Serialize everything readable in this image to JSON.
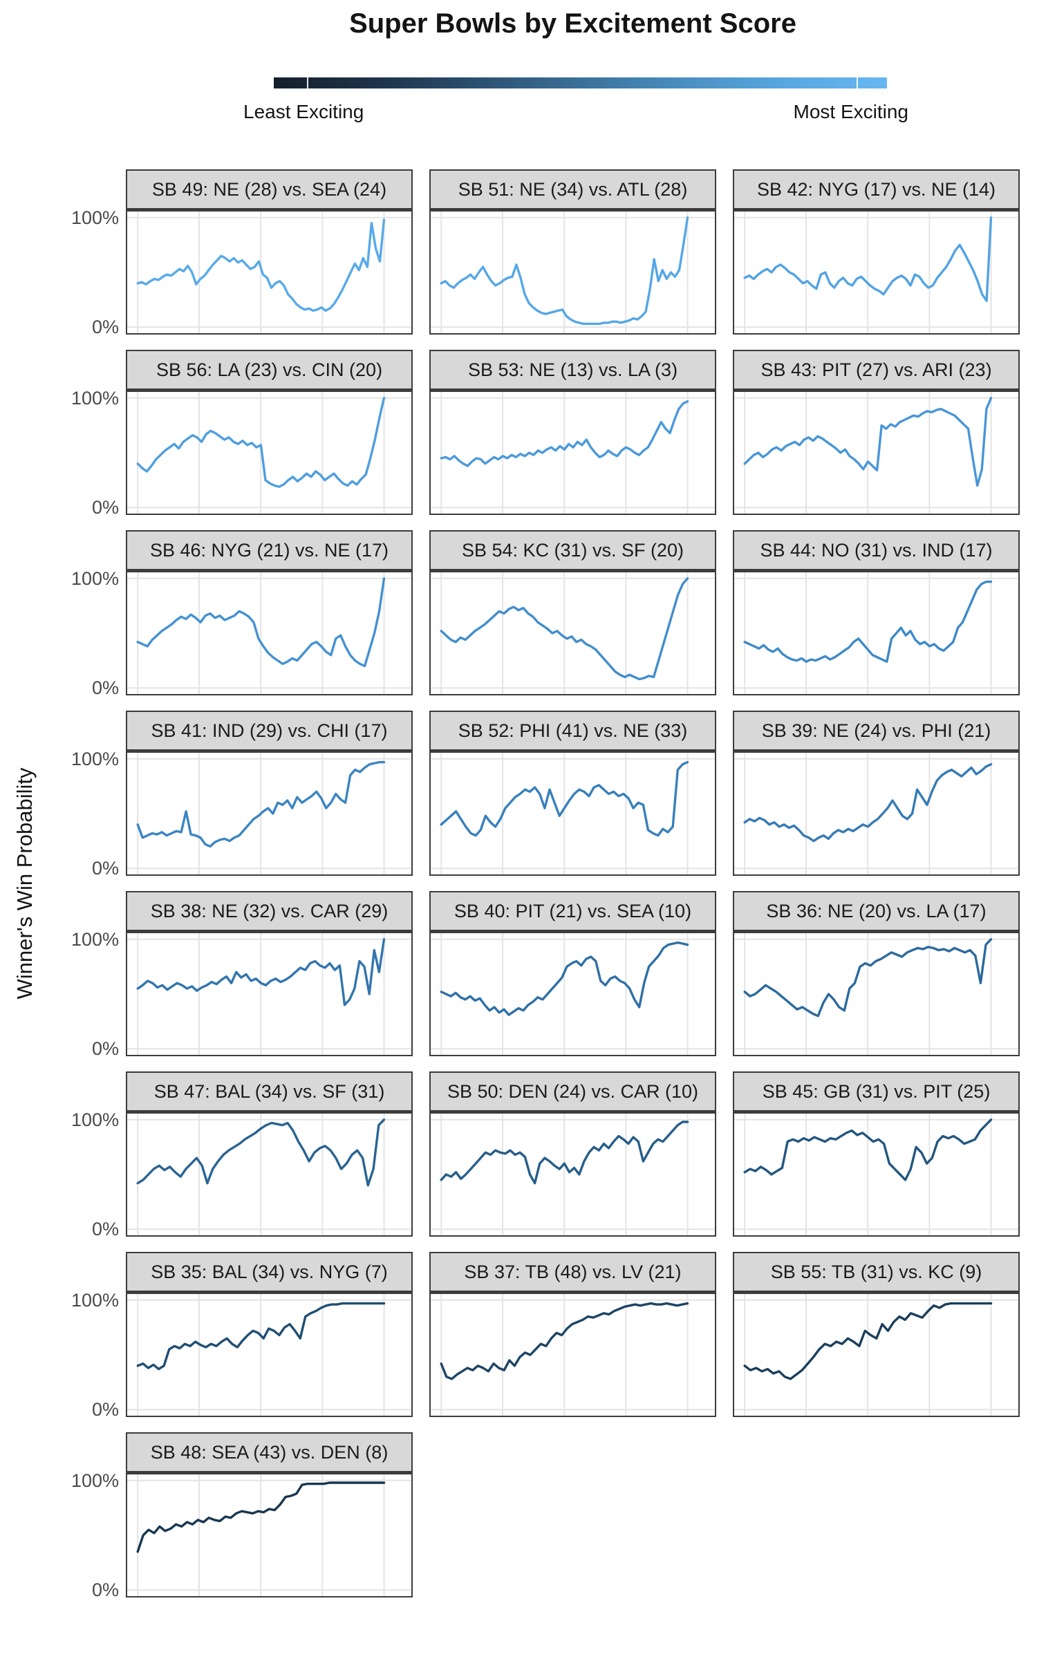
{
  "header": {
    "title": "Super Bowls by Excitement Score"
  },
  "legend": {
    "least_label": "Least Exciting",
    "most_label": "Most Exciting",
    "gradient": [
      "#141f2b",
      "#1d3349",
      "#2b5070",
      "#3a7099",
      "#4a8ec0",
      "#58a7e2",
      "#67b7f2"
    ],
    "tick_positions_pct": [
      5.4,
      95
    ]
  },
  "y_axis": {
    "title": "Winner's Win Probability",
    "tick_top": "100%",
    "tick_bottom": "0%"
  },
  "chart_data": {
    "type": "line",
    "layout": "small-multiples, 3 columns, ordered most exciting (top-left, light blue) to least exciting (bottom, dark navy)",
    "x": "game progress, evenly spaced from kickoff (left gridline) to final play (right gridline)",
    "xlabel": "",
    "ylabel": "Winner's Win Probability",
    "ylim": [
      0,
      100
    ],
    "y_ticks": [
      "0%",
      "100%"
    ],
    "grid": "5 vertical gridlines per panel plus horizontal lines at 0% and 100%",
    "legend_position": "top gradient bar: Least Exciting (dark) to Most Exciting (light)",
    "facets": [
      {
        "title": "SB 49: NE (28) vs. SEA (24)",
        "color": "#58aae9",
        "values": [
          40,
          41,
          39,
          42,
          44,
          43,
          46,
          48,
          47,
          50,
          53,
          51,
          56,
          50,
          39,
          44,
          47,
          52,
          57,
          61,
          65,
          63,
          60,
          63,
          59,
          61,
          57,
          53,
          55,
          60,
          48,
          45,
          36,
          40,
          42,
          38,
          30,
          26,
          21,
          18,
          16,
          17,
          15,
          16,
          18,
          15,
          17,
          21,
          27,
          34,
          42,
          50,
          58,
          52,
          63,
          55,
          95,
          72,
          60,
          98
        ]
      },
      {
        "title": "SB 51: NE (34) vs. ATL (28)",
        "color": "#55a7e7",
        "values": [
          40,
          42,
          38,
          36,
          40,
          43,
          45,
          48,
          44,
          50,
          55,
          48,
          42,
          38,
          40,
          43,
          45,
          46,
          57,
          45,
          30,
          22,
          18,
          15,
          13,
          12,
          13,
          14,
          15,
          16,
          10,
          7,
          5,
          4,
          3,
          3,
          3,
          3,
          3,
          4,
          4,
          5,
          5,
          4,
          5,
          6,
          8,
          7,
          10,
          14,
          35,
          62,
          42,
          52,
          44,
          50,
          46,
          52,
          75,
          100
        ]
      },
      {
        "title": "SB 42: NYG (17) vs. NE (14)",
        "color": "#52a3e3",
        "values": [
          45,
          47,
          44,
          48,
          51,
          53,
          50,
          55,
          57,
          54,
          50,
          48,
          44,
          40,
          42,
          38,
          35,
          48,
          50,
          40,
          36,
          42,
          45,
          40,
          38,
          44,
          46,
          42,
          38,
          35,
          33,
          30,
          36,
          42,
          45,
          47,
          44,
          38,
          48,
          46,
          40,
          36,
          38,
          45,
          50,
          55,
          62,
          70,
          75,
          68,
          60,
          52,
          42,
          30,
          24,
          100
        ]
      },
      {
        "title": "SB 56: LA (23) vs. CIN (20)",
        "color": "#4e9edf",
        "values": [
          40,
          36,
          33,
          38,
          44,
          48,
          52,
          55,
          58,
          54,
          60,
          63,
          66,
          64,
          60,
          67,
          70,
          68,
          65,
          62,
          64,
          60,
          58,
          61,
          57,
          59,
          55,
          57,
          25,
          22,
          20,
          19,
          21,
          25,
          28,
          24,
          27,
          31,
          28,
          33,
          30,
          25,
          28,
          31,
          26,
          22,
          20,
          24,
          21,
          26,
          30,
          45,
          62,
          82,
          100
        ]
      },
      {
        "title": "SB 53: NE (13) vs. LA (3)",
        "color": "#4b9adb",
        "values": [
          45,
          46,
          44,
          47,
          43,
          40,
          38,
          42,
          45,
          44,
          40,
          43,
          46,
          44,
          47,
          45,
          48,
          46,
          49,
          47,
          50,
          48,
          52,
          50,
          53,
          55,
          52,
          56,
          53,
          58,
          55,
          60,
          57,
          62,
          55,
          50,
          46,
          48,
          52,
          49,
          47,
          52,
          55,
          53,
          50,
          48,
          52,
          55,
          62,
          70,
          78,
          72,
          68,
          80,
          90,
          95,
          97
        ]
      },
      {
        "title": "SB 43: PIT (27) vs. ARI (23)",
        "color": "#4896d7",
        "values": [
          40,
          44,
          48,
          50,
          46,
          49,
          53,
          55,
          52,
          56,
          58,
          60,
          57,
          62,
          64,
          61,
          65,
          63,
          60,
          57,
          54,
          50,
          53,
          47,
          44,
          40,
          35,
          42,
          38,
          34,
          75,
          72,
          76,
          74,
          78,
          80,
          82,
          84,
          83,
          86,
          88,
          87,
          89,
          90,
          88,
          86,
          84,
          80,
          76,
          72,
          45,
          20,
          35,
          90,
          100
        ]
      },
      {
        "title": "SB 46: NYG (21) vs. NE (17)",
        "color": "#4492d2",
        "values": [
          42,
          40,
          38,
          44,
          48,
          52,
          55,
          58,
          62,
          65,
          63,
          67,
          64,
          60,
          66,
          68,
          64,
          66,
          62,
          64,
          66,
          70,
          68,
          65,
          60,
          45,
          38,
          32,
          28,
          25,
          22,
          24,
          27,
          25,
          30,
          35,
          40,
          42,
          38,
          33,
          30,
          45,
          48,
          38,
          30,
          25,
          22,
          20,
          35,
          50,
          70,
          100
        ]
      },
      {
        "title": "SB 54: KC (31) vs. SF (20)",
        "color": "#418ecd",
        "values": [
          52,
          48,
          44,
          42,
          46,
          44,
          48,
          52,
          55,
          58,
          62,
          66,
          70,
          68,
          72,
          74,
          71,
          73,
          68,
          65,
          60,
          57,
          54,
          50,
          52,
          48,
          45,
          47,
          42,
          44,
          40,
          38,
          35,
          30,
          25,
          20,
          15,
          12,
          10,
          12,
          10,
          8,
          9,
          11,
          10,
          25,
          40,
          55,
          70,
          85,
          95,
          100
        ]
      },
      {
        "title": "SB 44: NO (31) vs. IND (17)",
        "color": "#3e8ac8",
        "values": [
          42,
          40,
          38,
          36,
          39,
          35,
          33,
          36,
          31,
          28,
          26,
          25,
          27,
          24,
          26,
          25,
          27,
          29,
          26,
          28,
          31,
          34,
          37,
          42,
          45,
          40,
          35,
          30,
          28,
          26,
          24,
          45,
          50,
          55,
          48,
          52,
          44,
          40,
          42,
          38,
          40,
          36,
          34,
          38,
          42,
          55,
          60,
          70,
          80,
          90,
          95,
          97,
          97
        ]
      },
      {
        "title": "SB 41: IND (29) vs. CHI (17)",
        "color": "#3b85c2",
        "values": [
          40,
          28,
          30,
          32,
          31,
          33,
          30,
          32,
          34,
          33,
          52,
          31,
          30,
          28,
          22,
          20,
          24,
          26,
          27,
          25,
          28,
          30,
          35,
          40,
          45,
          48,
          52,
          55,
          50,
          60,
          58,
          62,
          55,
          65,
          60,
          63,
          66,
          70,
          64,
          55,
          60,
          68,
          63,
          60,
          85,
          90,
          88,
          92,
          95,
          96,
          97,
          97
        ]
      },
      {
        "title": "SB 52: PHI (41) vs. NE (33)",
        "color": "#3880bc",
        "values": [
          40,
          44,
          48,
          52,
          45,
          38,
          32,
          30,
          35,
          48,
          42,
          38,
          45,
          55,
          60,
          65,
          68,
          72,
          70,
          74,
          68,
          55,
          72,
          60,
          48,
          55,
          62,
          68,
          72,
          70,
          66,
          74,
          76,
          72,
          68,
          70,
          66,
          68,
          64,
          55,
          60,
          58,
          35,
          32,
          30,
          36,
          33,
          38,
          90,
          95,
          97
        ]
      },
      {
        "title": "SB 39: NE (24) vs. PHI (21)",
        "color": "#357bb5",
        "values": [
          42,
          45,
          43,
          46,
          44,
          40,
          42,
          38,
          40,
          37,
          39,
          35,
          30,
          28,
          25,
          28,
          30,
          27,
          32,
          35,
          33,
          36,
          34,
          37,
          40,
          38,
          42,
          45,
          50,
          55,
          62,
          55,
          48,
          45,
          50,
          72,
          65,
          58,
          70,
          80,
          85,
          88,
          90,
          87,
          84,
          88,
          92,
          86,
          89,
          93,
          95
        ]
      },
      {
        "title": "SB 38: NE (32) vs. CAR (29)",
        "color": "#3275ad",
        "values": [
          55,
          58,
          62,
          60,
          56,
          58,
          54,
          57,
          60,
          58,
          55,
          57,
          53,
          56,
          58,
          61,
          59,
          63,
          66,
          60,
          70,
          65,
          68,
          62,
          64,
          60,
          58,
          62,
          64,
          61,
          63,
          66,
          70,
          74,
          72,
          78,
          80,
          76,
          74,
          78,
          72,
          76,
          40,
          45,
          55,
          80,
          75,
          50,
          90,
          70,
          100
        ]
      },
      {
        "title": "SB 40: PIT (21) vs. SEA (10)",
        "color": "#2f70a5",
        "values": [
          52,
          50,
          48,
          51,
          47,
          45,
          48,
          44,
          46,
          40,
          35,
          38,
          33,
          36,
          31,
          34,
          37,
          35,
          40,
          43,
          47,
          45,
          50,
          55,
          60,
          65,
          75,
          78,
          80,
          76,
          82,
          84,
          80,
          62,
          58,
          64,
          66,
          62,
          60,
          55,
          45,
          38,
          60,
          75,
          80,
          85,
          92,
          95,
          96,
          97,
          96,
          95
        ]
      },
      {
        "title": "SB 36: NE (20) vs. LA (17)",
        "color": "#2c6a9d",
        "values": [
          52,
          48,
          50,
          54,
          58,
          55,
          52,
          48,
          44,
          40,
          36,
          38,
          35,
          32,
          30,
          42,
          50,
          45,
          38,
          35,
          55,
          60,
          75,
          78,
          76,
          80,
          82,
          85,
          88,
          86,
          84,
          88,
          90,
          92,
          91,
          93,
          92,
          90,
          91,
          89,
          92,
          90,
          88,
          90,
          85,
          60,
          95,
          100
        ]
      },
      {
        "title": "SB 47: BAL (34) vs. SF (31)",
        "color": "#296493",
        "values": [
          42,
          45,
          50,
          55,
          58,
          54,
          57,
          52,
          48,
          55,
          60,
          65,
          58,
          42,
          55,
          62,
          68,
          72,
          75,
          78,
          82,
          85,
          88,
          92,
          95,
          97,
          96,
          95,
          97,
          90,
          80,
          72,
          62,
          70,
          74,
          76,
          72,
          65,
          55,
          60,
          68,
          72,
          65,
          40,
          55,
          95,
          100
        ]
      },
      {
        "title": "SB 50: DEN (24) vs. CAR (10)",
        "color": "#265e8a",
        "values": [
          45,
          50,
          48,
          52,
          46,
          50,
          55,
          60,
          65,
          70,
          68,
          72,
          70,
          69,
          72,
          68,
          70,
          66,
          50,
          42,
          60,
          65,
          62,
          58,
          55,
          60,
          52,
          56,
          50,
          62,
          70,
          75,
          72,
          78,
          74,
          80,
          85,
          82,
          78,
          84,
          80,
          62,
          70,
          78,
          82,
          80,
          85,
          90,
          95,
          98,
          98
        ]
      },
      {
        "title": "SB 45: GB (31) vs. PIT (25)",
        "color": "#235780",
        "values": [
          52,
          55,
          53,
          57,
          54,
          50,
          53,
          56,
          80,
          82,
          80,
          83,
          81,
          84,
          82,
          80,
          83,
          82,
          85,
          88,
          90,
          86,
          88,
          84,
          80,
          82,
          78,
          60,
          55,
          50,
          45,
          55,
          75,
          70,
          60,
          65,
          80,
          85,
          83,
          85,
          82,
          78,
          80,
          82,
          90,
          95,
          100
        ]
      },
      {
        "title": "SB 35: BAL (34) vs. NYG (7)",
        "color": "#1f4e73",
        "values": [
          40,
          42,
          38,
          41,
          37,
          40,
          55,
          58,
          56,
          60,
          58,
          62,
          59,
          57,
          60,
          58,
          62,
          65,
          60,
          57,
          63,
          68,
          72,
          70,
          65,
          74,
          72,
          68,
          75,
          78,
          72,
          65,
          85,
          88,
          90,
          93,
          95,
          96,
          96,
          97,
          97,
          97,
          97,
          97,
          97,
          97,
          97,
          97
        ]
      },
      {
        "title": "SB 37: TB (48) vs. LV (21)",
        "color": "#1c4566",
        "values": [
          42,
          30,
          28,
          32,
          35,
          38,
          36,
          40,
          38,
          35,
          42,
          38,
          36,
          45,
          40,
          48,
          52,
          50,
          55,
          60,
          58,
          65,
          70,
          68,
          74,
          78,
          80,
          82,
          85,
          84,
          86,
          88,
          87,
          90,
          92,
          94,
          95,
          96,
          95,
          96,
          97,
          96,
          96,
          97,
          96,
          95,
          96,
          97
        ]
      },
      {
        "title": "SB 55: TB (31) vs. KC (9)",
        "color": "#1a3e5b",
        "values": [
          40,
          36,
          38,
          35,
          37,
          33,
          35,
          30,
          28,
          32,
          36,
          42,
          48,
          55,
          60,
          58,
          62,
          60,
          65,
          62,
          58,
          72,
          68,
          65,
          78,
          72,
          80,
          85,
          82,
          88,
          86,
          84,
          90,
          95,
          93,
          96,
          97,
          97,
          97,
          97,
          97,
          97,
          97,
          97
        ]
      },
      {
        "title": "SB 48: SEA (43) vs. DEN (8)",
        "color": "#183750",
        "values": [
          35,
          50,
          55,
          52,
          58,
          54,
          56,
          60,
          58,
          62,
          60,
          64,
          62,
          66,
          64,
          63,
          67,
          66,
          70,
          72,
          71,
          70,
          72,
          71,
          74,
          73,
          78,
          85,
          86,
          88,
          96,
          97,
          97,
          97,
          97,
          98,
          98,
          98,
          98,
          98,
          98,
          98,
          98,
          98,
          98,
          98
        ]
      }
    ]
  }
}
